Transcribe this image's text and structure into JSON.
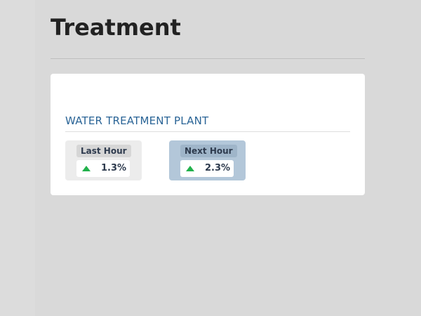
{
  "page": {
    "title": "Treatment"
  },
  "card": {
    "plant_title": "WATER TREATMENT PLANT",
    "metrics": [
      {
        "label": "Last Hour",
        "value": "1.3%",
        "trend_icon": "triangle-up-icon",
        "trend_color": "#21b14b",
        "background": "#ececec"
      },
      {
        "label": "Next Hour",
        "value": "2.3%",
        "trend_icon": "triangle-up-icon",
        "trend_color": "#21b14b",
        "background": "#b3c7d9"
      }
    ]
  }
}
